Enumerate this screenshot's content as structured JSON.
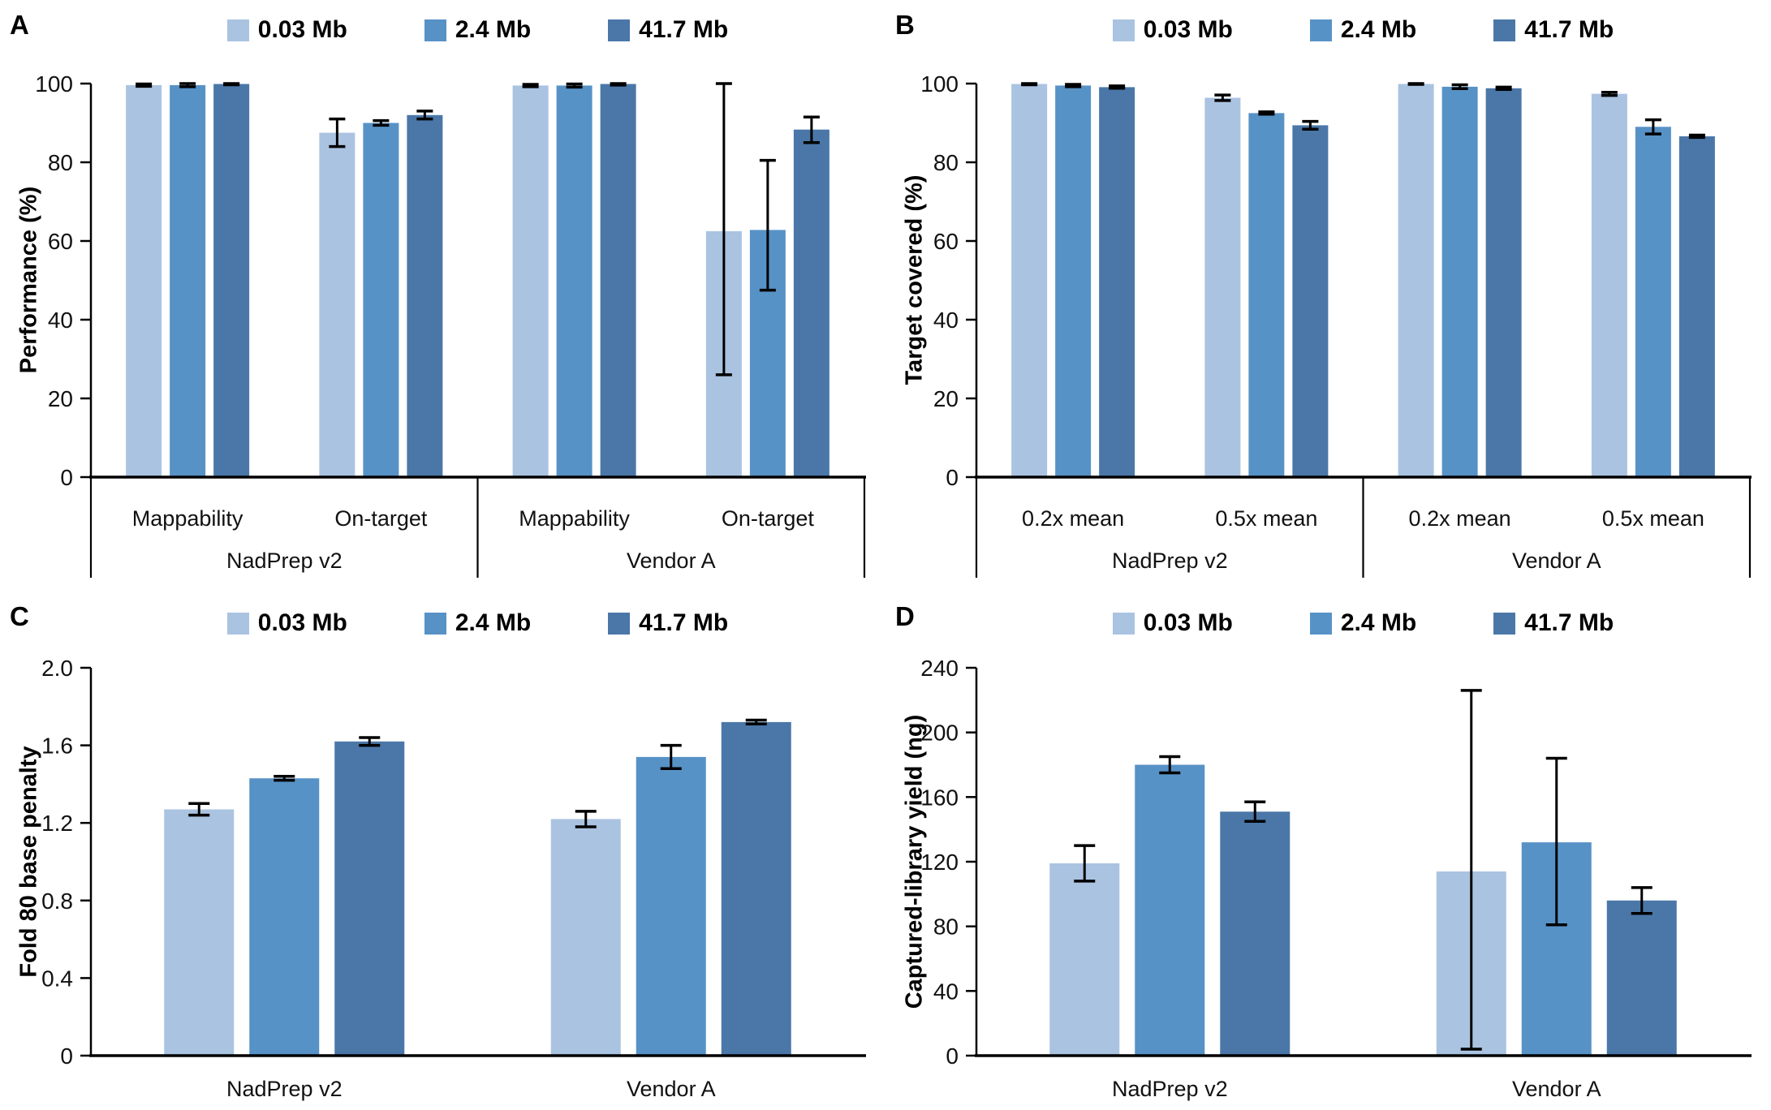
{
  "figure_type": "multi-panel grouped bar chart",
  "background": "#ffffff",
  "axis_color": "#000000",
  "error_bar_color": "#000000",
  "series_colors": [
    "#aac3e1",
    "#5792c6",
    "#4a77a8"
  ],
  "legend_series": [
    "0.03 Mb",
    "2.4 Mb",
    "41.7 Mb"
  ],
  "chart_data": [
    {
      "id": "A",
      "type": "bar",
      "panel_label": "A",
      "title": "",
      "xlabel": "",
      "ylabel": "Performance (%)",
      "ylim": [
        0,
        100
      ],
      "ytick_values": [
        100,
        80,
        60,
        40,
        20,
        0
      ],
      "ytick_labels": [
        "100",
        "80",
        "60",
        "40",
        "20",
        "0"
      ],
      "grid": "off",
      "legend_position": "top",
      "series": [
        "0.03 Mb",
        "2.4 Mb",
        "41.7 Mb"
      ],
      "groups": [
        {
          "label": "NadPrep v2",
          "subgroups": [
            {
              "label": "Mappability",
              "values": [
                99.6,
                99.6,
                99.9
              ],
              "error_low": [
                99.3,
                99.2,
                99.7
              ],
              "error_high": [
                99.9,
                100,
                100
              ]
            },
            {
              "label": "On-target",
              "values": [
                87.5,
                90.0,
                92.0
              ],
              "error_low": [
                84.0,
                89.4,
                91.0
              ],
              "error_high": [
                91.0,
                90.6,
                93.0
              ]
            }
          ]
        },
        {
          "label": "Vendor A",
          "subgroups": [
            {
              "label": "Mappability",
              "values": [
                99.5,
                99.5,
                99.9
              ],
              "error_low": [
                99.2,
                99.1,
                99.6
              ],
              "error_high": [
                99.8,
                99.9,
                100
              ]
            },
            {
              "label": "On-target",
              "values": [
                62.5,
                62.8,
                88.3
              ],
              "error_low": [
                26.0,
                47.5,
                85.0
              ],
              "error_high": [
                100,
                80.5,
                91.5
              ]
            }
          ]
        }
      ]
    },
    {
      "id": "B",
      "type": "bar",
      "panel_label": "B",
      "title": "",
      "xlabel": "",
      "ylabel": "Target covered (%)",
      "ylim": [
        0,
        100
      ],
      "ytick_values": [
        100,
        80,
        60,
        40,
        20,
        0
      ],
      "ytick_labels": [
        "100",
        "80",
        "60",
        "40",
        "20",
        "0"
      ],
      "grid": "off",
      "legend_position": "top",
      "series": [
        "0.03 Mb",
        "2.4 Mb",
        "41.7 Mb"
      ],
      "groups": [
        {
          "label": "NadPrep v2",
          "subgroups": [
            {
              "label": "0.2x mean",
              "values": [
                99.9,
                99.5,
                99.1
              ],
              "error_low": [
                99.7,
                99.2,
                98.8
              ],
              "error_high": [
                100,
                99.8,
                99.4
              ]
            },
            {
              "label": "0.5x mean",
              "values": [
                96.4,
                92.5,
                89.4
              ],
              "error_low": [
                95.7,
                92.2,
                88.4
              ],
              "error_high": [
                97.1,
                92.8,
                90.4
              ]
            }
          ]
        },
        {
          "label": "Vendor A",
          "subgroups": [
            {
              "label": "0.2x mean",
              "values": [
                99.9,
                99.2,
                98.8
              ],
              "error_low": [
                99.8,
                98.7,
                98.5
              ],
              "error_high": [
                100,
                99.7,
                99.1
              ]
            },
            {
              "label": "0.5x mean",
              "values": [
                97.4,
                89.0,
                86.6
              ],
              "error_low": [
                97.0,
                87.2,
                86.3
              ],
              "error_high": [
                97.8,
                90.8,
                86.9
              ]
            }
          ]
        }
      ]
    },
    {
      "id": "C",
      "type": "bar",
      "panel_label": "C",
      "title": "",
      "xlabel": "",
      "ylabel": "Fold 80 base penalty",
      "ylim": [
        0,
        2.0
      ],
      "ytick_values": [
        2.0,
        1.6,
        1.2,
        0.8,
        0.4,
        0
      ],
      "ytick_labels": [
        "2.0",
        "1.6",
        "1.2",
        "0.8",
        "0.4",
        "0"
      ],
      "grid": "off",
      "legend_position": "top",
      "series": [
        "0.03 Mb",
        "2.4 Mb",
        "41.7 Mb"
      ],
      "groups": [
        {
          "label": "NadPrep v2",
          "values": [
            1.27,
            1.43,
            1.62
          ],
          "error_low": [
            1.24,
            1.42,
            1.6
          ],
          "error_high": [
            1.3,
            1.44,
            1.64
          ]
        },
        {
          "label": "Vendor A",
          "values": [
            1.22,
            1.54,
            1.72
          ],
          "error_low": [
            1.18,
            1.48,
            1.71
          ],
          "error_high": [
            1.26,
            1.6,
            1.73
          ]
        }
      ]
    },
    {
      "id": "D",
      "type": "bar",
      "panel_label": "D",
      "title": "",
      "xlabel": "",
      "ylabel": "Captured-library yield (ng)",
      "ylim": [
        0,
        240
      ],
      "ytick_values": [
        240,
        200,
        160,
        120,
        80,
        40,
        0
      ],
      "ytick_labels": [
        "240",
        "200",
        "160",
        "120",
        "80",
        "40",
        "0"
      ],
      "grid": "off",
      "legend_position": "top",
      "series": [
        "0.03 Mb",
        "2.4 Mb",
        "41.7 Mb"
      ],
      "groups": [
        {
          "label": "NadPrep v2",
          "values": [
            119,
            180,
            151
          ],
          "error_low": [
            108,
            175,
            145
          ],
          "error_high": [
            130,
            185,
            157
          ]
        },
        {
          "label": "Vendor A",
          "values": [
            114,
            132,
            96
          ],
          "error_low": [
            4,
            81,
            88
          ],
          "error_high": [
            226,
            184,
            104
          ]
        }
      ]
    }
  ]
}
